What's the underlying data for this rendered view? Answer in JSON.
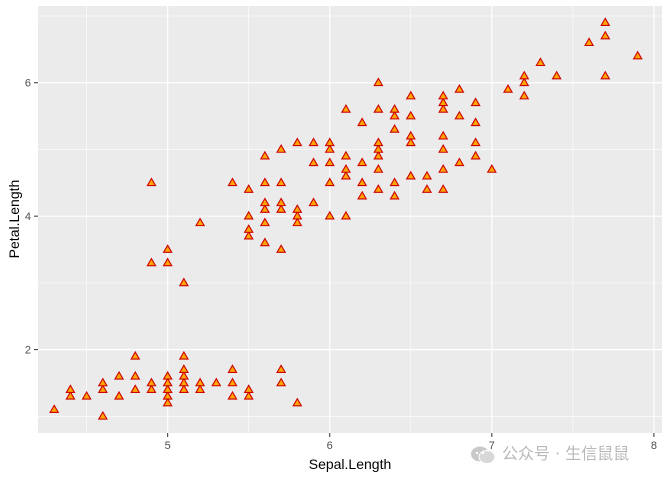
{
  "chart_data": {
    "type": "scatter",
    "xlabel": "Sepal.Length",
    "ylabel": "Petal.Length",
    "xlim": [
      4.2,
      8.05
    ],
    "ylim": [
      0.75,
      7.15
    ],
    "x_ticks": [
      5,
      6,
      7,
      8
    ],
    "y_ticks": [
      2,
      4,
      6
    ],
    "grid": true,
    "marker": "triangle",
    "colors": {
      "fill": "#FFA500",
      "stroke": "#CC0000",
      "panel": "#EBEBEB",
      "grid": "#FFFFFF"
    },
    "points": [
      [
        4.3,
        1.1
      ],
      [
        4.4,
        1.3
      ],
      [
        4.4,
        1.4
      ],
      [
        4.5,
        1.3
      ],
      [
        4.6,
        1.0
      ],
      [
        4.6,
        1.4
      ],
      [
        4.6,
        1.5
      ],
      [
        4.7,
        1.3
      ],
      [
        4.7,
        1.6
      ],
      [
        4.8,
        1.4
      ],
      [
        4.8,
        1.6
      ],
      [
        4.8,
        1.9
      ],
      [
        4.9,
        1.4
      ],
      [
        4.9,
        1.5
      ],
      [
        5.0,
        1.2
      ],
      [
        5.0,
        1.3
      ],
      [
        5.0,
        1.4
      ],
      [
        5.0,
        1.5
      ],
      [
        5.0,
        1.6
      ],
      [
        5.1,
        1.4
      ],
      [
        5.1,
        1.5
      ],
      [
        5.1,
        1.6
      ],
      [
        5.1,
        1.7
      ],
      [
        5.1,
        1.9
      ],
      [
        5.2,
        1.4
      ],
      [
        5.2,
        1.5
      ],
      [
        5.3,
        1.5
      ],
      [
        5.4,
        1.3
      ],
      [
        5.4,
        1.5
      ],
      [
        5.4,
        1.7
      ],
      [
        5.5,
        1.3
      ],
      [
        5.5,
        1.4
      ],
      [
        5.7,
        1.5
      ],
      [
        5.7,
        1.7
      ],
      [
        5.8,
        1.2
      ],
      [
        4.9,
        3.3
      ],
      [
        4.9,
        4.5
      ],
      [
        5.0,
        3.3
      ],
      [
        5.0,
        3.5
      ],
      [
        5.1,
        3.0
      ],
      [
        5.2,
        3.9
      ],
      [
        5.4,
        4.5
      ],
      [
        5.5,
        3.7
      ],
      [
        5.5,
        3.8
      ],
      [
        5.5,
        4.0
      ],
      [
        5.5,
        4.4
      ],
      [
        5.6,
        3.6
      ],
      [
        5.6,
        3.9
      ],
      [
        5.6,
        4.1
      ],
      [
        5.6,
        4.2
      ],
      [
        5.6,
        4.5
      ],
      [
        5.6,
        4.9
      ],
      [
        5.7,
        3.5
      ],
      [
        5.7,
        4.1
      ],
      [
        5.7,
        4.2
      ],
      [
        5.7,
        4.5
      ],
      [
        5.7,
        5.0
      ],
      [
        5.8,
        3.9
      ],
      [
        5.8,
        4.0
      ],
      [
        5.8,
        4.1
      ],
      [
        5.8,
        5.1
      ],
      [
        5.9,
        4.2
      ],
      [
        5.9,
        4.8
      ],
      [
        5.9,
        5.1
      ],
      [
        6.0,
        4.0
      ],
      [
        6.0,
        4.5
      ],
      [
        6.0,
        4.8
      ],
      [
        6.0,
        5.0
      ],
      [
        6.0,
        5.1
      ],
      [
        6.1,
        4.0
      ],
      [
        6.1,
        4.6
      ],
      [
        6.1,
        4.7
      ],
      [
        6.1,
        4.9
      ],
      [
        6.1,
        5.6
      ],
      [
        6.2,
        4.3
      ],
      [
        6.2,
        4.5
      ],
      [
        6.2,
        4.8
      ],
      [
        6.2,
        5.4
      ],
      [
        6.3,
        4.4
      ],
      [
        6.3,
        4.7
      ],
      [
        6.3,
        4.9
      ],
      [
        6.3,
        5.0
      ],
      [
        6.3,
        5.1
      ],
      [
        6.3,
        5.6
      ],
      [
        6.3,
        6.0
      ],
      [
        6.4,
        4.3
      ],
      [
        6.4,
        4.5
      ],
      [
        6.4,
        5.3
      ],
      [
        6.4,
        5.5
      ],
      [
        6.4,
        5.6
      ],
      [
        6.5,
        4.6
      ],
      [
        6.5,
        5.1
      ],
      [
        6.5,
        5.2
      ],
      [
        6.5,
        5.5
      ],
      [
        6.5,
        5.8
      ],
      [
        6.6,
        4.4
      ],
      [
        6.6,
        4.6
      ],
      [
        6.7,
        4.4
      ],
      [
        6.7,
        4.7
      ],
      [
        6.7,
        5.0
      ],
      [
        6.7,
        5.2
      ],
      [
        6.7,
        5.6
      ],
      [
        6.7,
        5.7
      ],
      [
        6.7,
        5.8
      ],
      [
        6.8,
        4.8
      ],
      [
        6.8,
        5.5
      ],
      [
        6.8,
        5.9
      ],
      [
        6.9,
        4.9
      ],
      [
        6.9,
        5.1
      ],
      [
        6.9,
        5.4
      ],
      [
        6.9,
        5.7
      ],
      [
        7.0,
        4.7
      ],
      [
        7.1,
        5.9
      ],
      [
        7.2,
        5.8
      ],
      [
        7.2,
        6.0
      ],
      [
        7.2,
        6.1
      ],
      [
        7.3,
        6.3
      ],
      [
        7.4,
        6.1
      ],
      [
        7.6,
        6.6
      ],
      [
        7.7,
        6.1
      ],
      [
        7.7,
        6.7
      ],
      [
        7.7,
        6.9
      ],
      [
        7.9,
        6.4
      ]
    ]
  },
  "watermark": {
    "text": "公众号 · 生信鼠鼠"
  }
}
